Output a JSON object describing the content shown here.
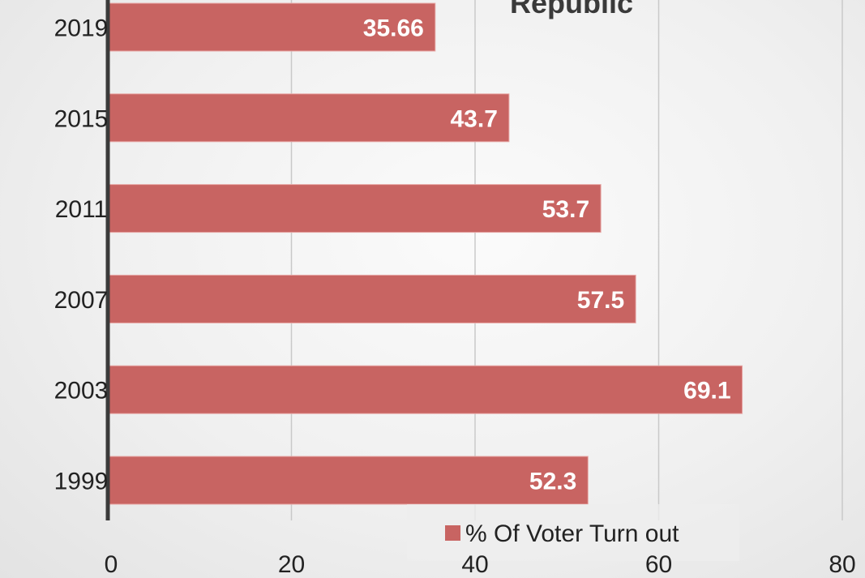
{
  "chart_data": {
    "type": "bar",
    "orientation": "horizontal",
    "title": "Republic",
    "categories": [
      "2019",
      "2015",
      "2011",
      "2007",
      "2003",
      "1999"
    ],
    "series": [
      {
        "name": "% Of Voter Turn out",
        "values": [
          35.66,
          43.7,
          53.7,
          57.5,
          69.1,
          52.3
        ],
        "labels": [
          "35.66",
          "43.7",
          "53.7",
          "57.5",
          "69.1",
          "52.3"
        ],
        "color": "#c86462"
      }
    ],
    "xlim": [
      0,
      80
    ],
    "xticks": [
      0,
      20,
      40,
      60,
      80
    ],
    "xtick_labels": [
      "0",
      "20",
      "40",
      "60",
      "80"
    ],
    "xlabel": "",
    "ylabel": "",
    "grid": "vertical",
    "legend": "bottom"
  }
}
